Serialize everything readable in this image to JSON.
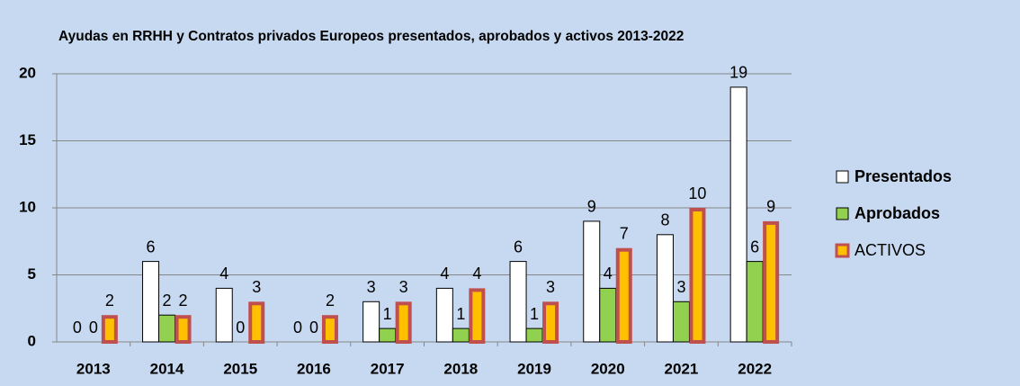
{
  "chart_data": {
    "type": "bar",
    "title": "Ayudas en RRHH y Contratos privados Europeos presentados, aprobados y activos 2013-2022",
    "categories": [
      "2013",
      "2014",
      "2015",
      "2016",
      "2017",
      "2018",
      "2019",
      "2020",
      "2021",
      "2022"
    ],
    "series": [
      {
        "name": "Presentados",
        "color": "#ffffff",
        "values": [
          0,
          6,
          4,
          0,
          3,
          4,
          6,
          9,
          8,
          19
        ]
      },
      {
        "name": "Aprobados",
        "color": "#92d050",
        "values": [
          0,
          2,
          0,
          0,
          1,
          1,
          1,
          4,
          3,
          6
        ]
      },
      {
        "name": "ACTIVOS",
        "color": "#ffc000",
        "values": [
          2,
          2,
          3,
          2,
          3,
          4,
          3,
          7,
          10,
          9
        ]
      }
    ],
    "ylim": [
      0,
      20
    ],
    "yticks": [
      0,
      5,
      10,
      15,
      20
    ],
    "grid": true,
    "legend": "right"
  }
}
